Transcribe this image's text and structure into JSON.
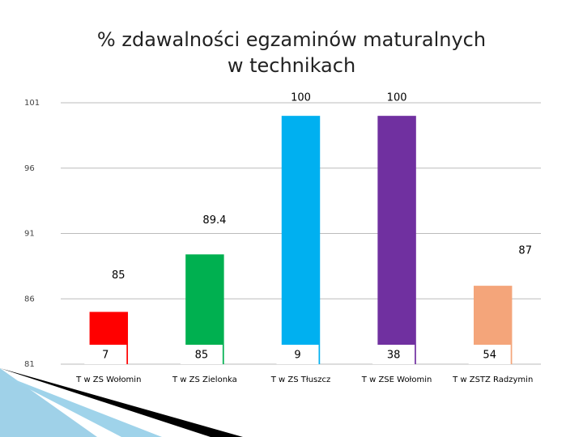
{
  "chart_data": {
    "type": "bar",
    "title": [
      "% zdawalności egzaminów maturalnych",
      "w technikach"
    ],
    "categories": [
      "T w ZS Wołomin",
      "T w ZS Zielonka",
      "T w ZS Tłuszcz",
      "T w ZSE Wołomin",
      "T w ZSTZ Radzymin"
    ],
    "values": [
      85,
      89.4,
      100,
      100,
      87
    ],
    "colors": [
      "#ff0000",
      "#00b050",
      "#00b0f0",
      "#7030a0",
      "#f4a57a"
    ],
    "box_numbers": [
      7,
      85,
      9,
      38,
      54
    ],
    "ylim": [
      81,
      101
    ],
    "yticks": [
      81,
      86,
      91,
      96,
      101
    ],
    "grid": true
  }
}
